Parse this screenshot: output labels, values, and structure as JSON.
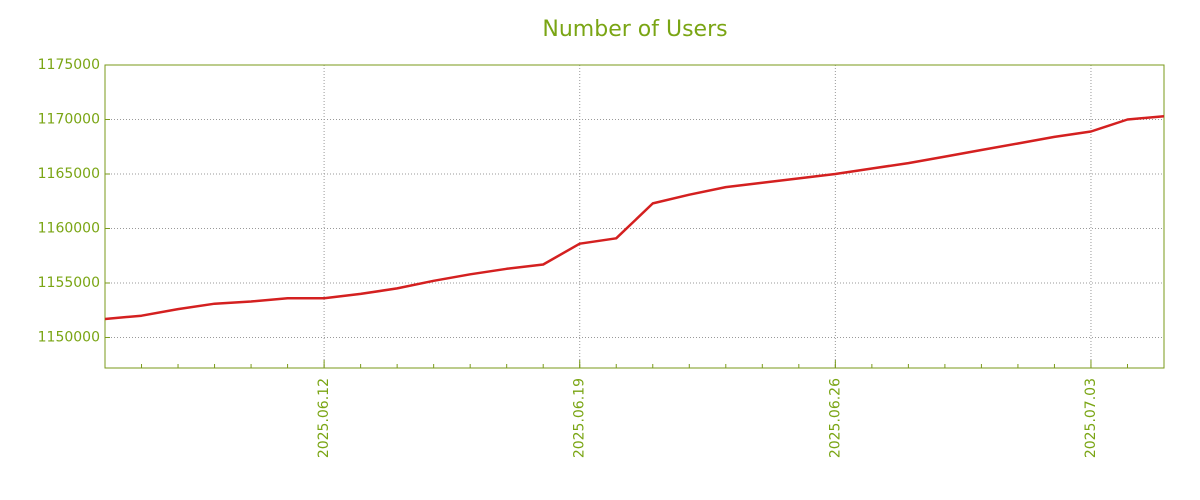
{
  "chart_data": {
    "type": "line",
    "title": "Number of Users",
    "x": [
      "2025.06.06",
      "2025.06.07",
      "2025.06.08",
      "2025.06.09",
      "2025.06.10",
      "2025.06.11",
      "2025.06.12",
      "2025.06.13",
      "2025.06.14",
      "2025.06.15",
      "2025.06.16",
      "2025.06.17",
      "2025.06.18",
      "2025.06.19",
      "2025.06.20",
      "2025.06.21",
      "2025.06.22",
      "2025.06.23",
      "2025.06.24",
      "2025.06.25",
      "2025.06.26",
      "2025.06.27",
      "2025.06.28",
      "2025.06.29",
      "2025.06.30",
      "2025.07.01",
      "2025.07.02",
      "2025.07.03",
      "2025.07.04",
      "2025.07.05"
    ],
    "series": [
      {
        "name": "Number of Users",
        "color": "#d42020",
        "values": [
          1151700,
          1152000,
          1152600,
          1153100,
          1153300,
          1153600,
          1153600,
          1154000,
          1154500,
          1155200,
          1155800,
          1156300,
          1156700,
          1158600,
          1159100,
          1162300,
          1163100,
          1163800,
          1164200,
          1164600,
          1165000,
          1165500,
          1166000,
          1166600,
          1167200,
          1167800,
          1168400,
          1168900,
          1170000,
          1170300
        ]
      }
    ],
    "xlim": [
      "2025.06.06",
      "2025.07.05"
    ],
    "xticks": [
      "2025.06.12",
      "2025.06.19",
      "2025.06.26",
      "2025.07.03"
    ],
    "ylim": [
      1147200,
      1175000
    ],
    "yticks": [
      1150000,
      1155000,
      1160000,
      1165000,
      1170000,
      1175000
    ],
    "grid": true
  }
}
